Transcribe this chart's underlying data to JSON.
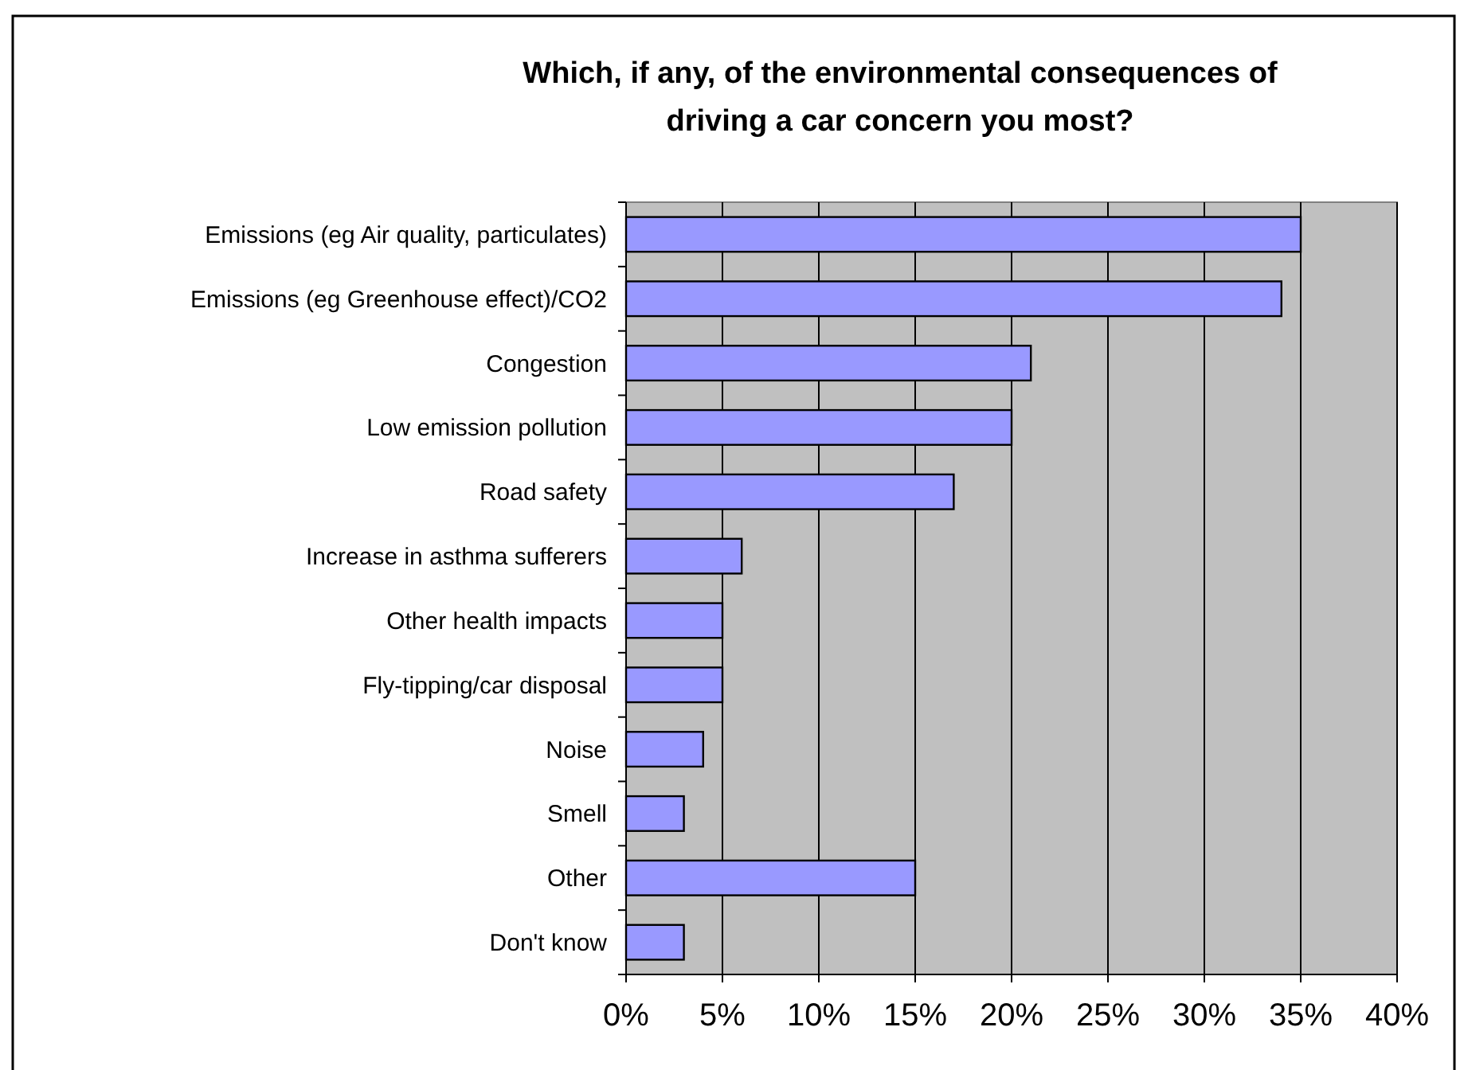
{
  "chart_data": {
    "type": "bar",
    "orientation": "horizontal",
    "title": "Which, if any, of the environmental consequences of driving a car concern you most?",
    "categories": [
      "Emissions (eg Air quality, particulates)",
      "Emissions (eg Greenhouse effect)/CO2",
      "Congestion",
      "Low emission pollution",
      "Road safety",
      "Increase in asthma sufferers",
      "Other health impacts",
      "Fly-tipping/car disposal",
      "Noise",
      "Smell",
      "Other",
      "Don't know"
    ],
    "values": [
      35,
      34,
      21,
      20,
      17,
      6,
      5,
      5,
      4,
      3,
      15,
      3
    ],
    "color": "#9999ff",
    "xlim": [
      0,
      40
    ],
    "xticks": [
      {
        "value": 0,
        "label": "0%"
      },
      {
        "value": 5,
        "label": "5%"
      },
      {
        "value": 10,
        "label": "10%"
      },
      {
        "value": 15,
        "label": "15%"
      },
      {
        "value": 20,
        "label": "20%"
      },
      {
        "value": 25,
        "label": "25%"
      },
      {
        "value": 30,
        "label": "30%"
      },
      {
        "value": 35,
        "label": "35%"
      },
      {
        "value": 40,
        "label": "40%"
      }
    ],
    "grid": "x"
  }
}
